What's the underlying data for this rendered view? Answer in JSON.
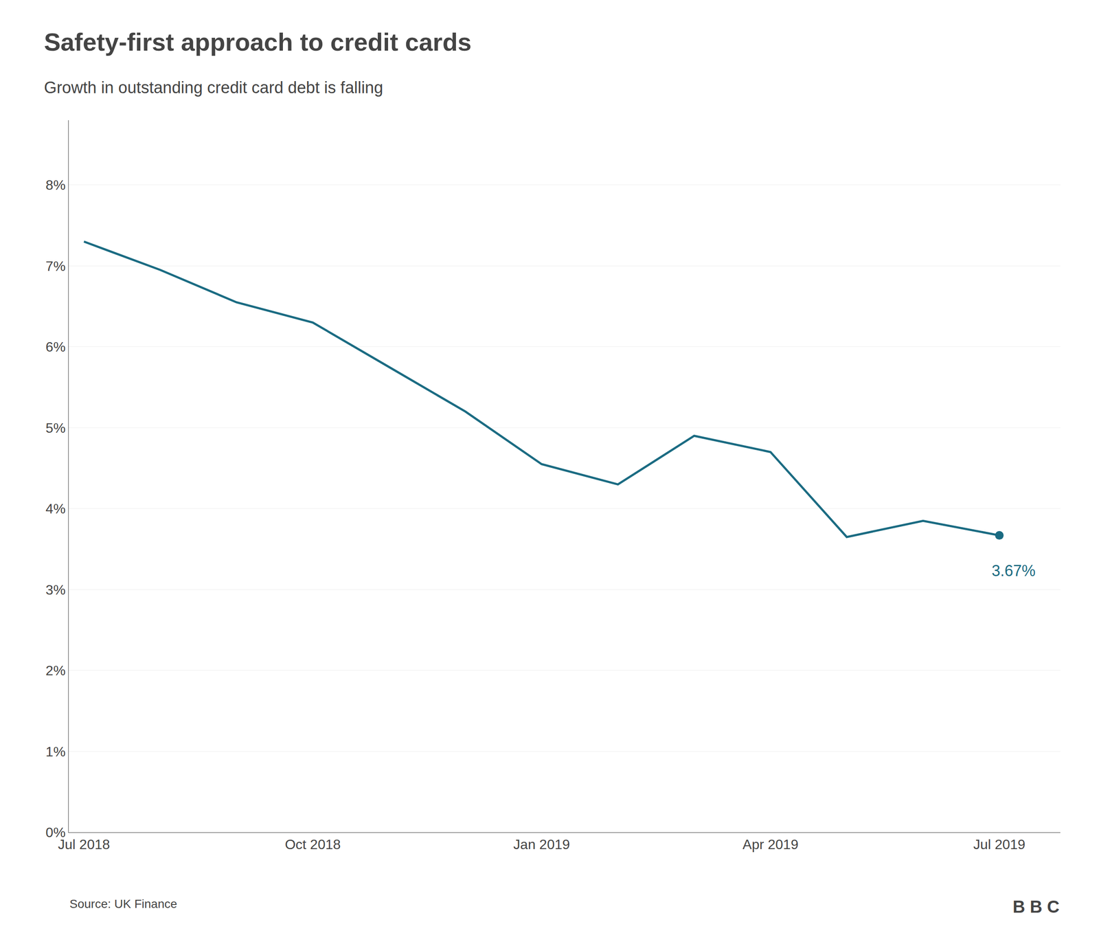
{
  "chart_data": {
    "type": "line",
    "title": "Safety-first approach to credit cards",
    "subtitle": "Growth in outstanding credit card debt is falling",
    "source": "Source: UK Finance",
    "logo": "BBC",
    "color": "#1a6b82",
    "x": [
      0,
      1,
      2,
      3,
      4,
      5,
      6,
      7,
      8,
      9,
      10,
      11,
      12
    ],
    "values": [
      7.3,
      6.95,
      6.55,
      6.3,
      5.75,
      5.2,
      4.55,
      4.3,
      4.9,
      4.7,
      3.65,
      3.85,
      3.67
    ],
    "xlim": [
      -0.2,
      12.8
    ],
    "xticks": [
      {
        "value": 0,
        "label": "Jul 2018"
      },
      {
        "value": 3,
        "label": "Oct 2018"
      },
      {
        "value": 6,
        "label": "Jan 2019"
      },
      {
        "value": 9,
        "label": "Apr 2019"
      },
      {
        "value": 12,
        "label": "Jul 2019"
      }
    ],
    "ylim": [
      0,
      8.8
    ],
    "yticks": [
      {
        "value": 0,
        "label": "0%"
      },
      {
        "value": 1,
        "label": "1%"
      },
      {
        "value": 2,
        "label": "2%"
      },
      {
        "value": 3,
        "label": "3%"
      },
      {
        "value": 4,
        "label": "4%"
      },
      {
        "value": 5,
        "label": "5%"
      },
      {
        "value": 6,
        "label": "6%"
      },
      {
        "value": 7,
        "label": "7%"
      },
      {
        "value": 8,
        "label": "8%"
      }
    ],
    "grid": true,
    "annotations": [
      {
        "text": "3.67%",
        "x": 12,
        "y": 3.67
      }
    ]
  }
}
